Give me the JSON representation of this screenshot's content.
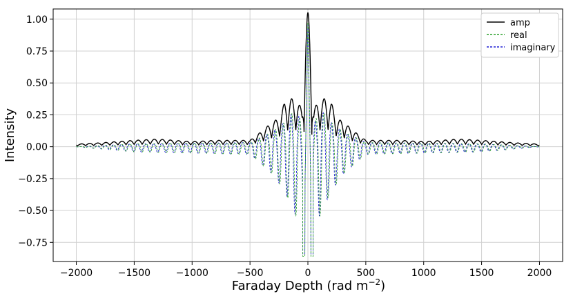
{
  "chart_data": {
    "type": "line",
    "xlabel": "Faraday Depth (rad m",
    "xlabel_sup": "−2",
    "xlabel_close": ")",
    "ylabel": "Intensity",
    "xlim": [
      -2200,
      2200
    ],
    "ylim": [
      -0.9,
      1.08
    ],
    "xticks": [
      -2000,
      -1500,
      -1000,
      -500,
      0,
      500,
      1000,
      1500,
      2000
    ],
    "xtick_labels": [
      "−2000",
      "−1500",
      "−1000",
      "−500",
      "0",
      "500",
      "1000",
      "1500",
      "2000"
    ],
    "yticks": [
      -0.75,
      -0.5,
      -0.25,
      0,
      0.25,
      0.5,
      0.75,
      1.0
    ],
    "ytick_labels": [
      "−0.75",
      "−0.50",
      "−0.25",
      "0.00",
      "0.25",
      "0.50",
      "0.75",
      "1.00"
    ],
    "grid": true,
    "legend_position": "top-right",
    "series": [
      {
        "name": "amp",
        "color": "#000000",
        "dash": "solid",
        "x": [
          -2000,
          -1800,
          -1500,
          -1300,
          -1000,
          -800,
          -500,
          -400,
          -300,
          -250,
          -200,
          -150,
          -100,
          -50,
          0,
          50,
          100,
          150,
          200,
          250,
          300,
          400,
          500,
          800,
          1000,
          1300,
          1500,
          1800,
          2000
        ],
        "y": [
          0.02,
          0.03,
          0.05,
          0.06,
          0.04,
          0.05,
          0.05,
          0.12,
          0.2,
          0.22,
          0.35,
          0.38,
          0.36,
          0.3,
          1.0,
          0.3,
          0.36,
          0.38,
          0.35,
          0.22,
          0.2,
          0.12,
          0.05,
          0.05,
          0.04,
          0.06,
          0.05,
          0.03,
          0.02
        ]
      },
      {
        "name": "real",
        "color": "#2ca02c",
        "dash": "dashed",
        "x": [
          -2000,
          -1500,
          -1000,
          -500,
          -300,
          -200,
          -100,
          -50,
          -5,
          0,
          5,
          50,
          100,
          200,
          300,
          500,
          1000,
          1500,
          2000
        ],
        "y": [
          0.0,
          -0.04,
          -0.05,
          -0.06,
          -0.22,
          -0.35,
          -0.55,
          -0.3,
          -0.86,
          1.0,
          -0.86,
          -0.3,
          -0.55,
          -0.35,
          -0.22,
          -0.06,
          -0.05,
          -0.04,
          0.0
        ]
      },
      {
        "name": "imaginary",
        "color": "#1f1fd4",
        "dash": "dashed",
        "x": [
          -2000,
          -1500,
          -1000,
          -500,
          -300,
          -200,
          -100,
          -50,
          -5,
          0,
          5,
          50,
          100,
          200,
          300,
          500,
          1000,
          1500,
          2000
        ],
        "y": [
          0.0,
          -0.04,
          -0.05,
          -0.06,
          -0.22,
          -0.35,
          -0.55,
          -0.3,
          -0.84,
          0.99,
          -0.84,
          -0.3,
          -0.55,
          -0.35,
          -0.22,
          -0.06,
          -0.05,
          -0.04,
          0.0
        ]
      }
    ]
  }
}
